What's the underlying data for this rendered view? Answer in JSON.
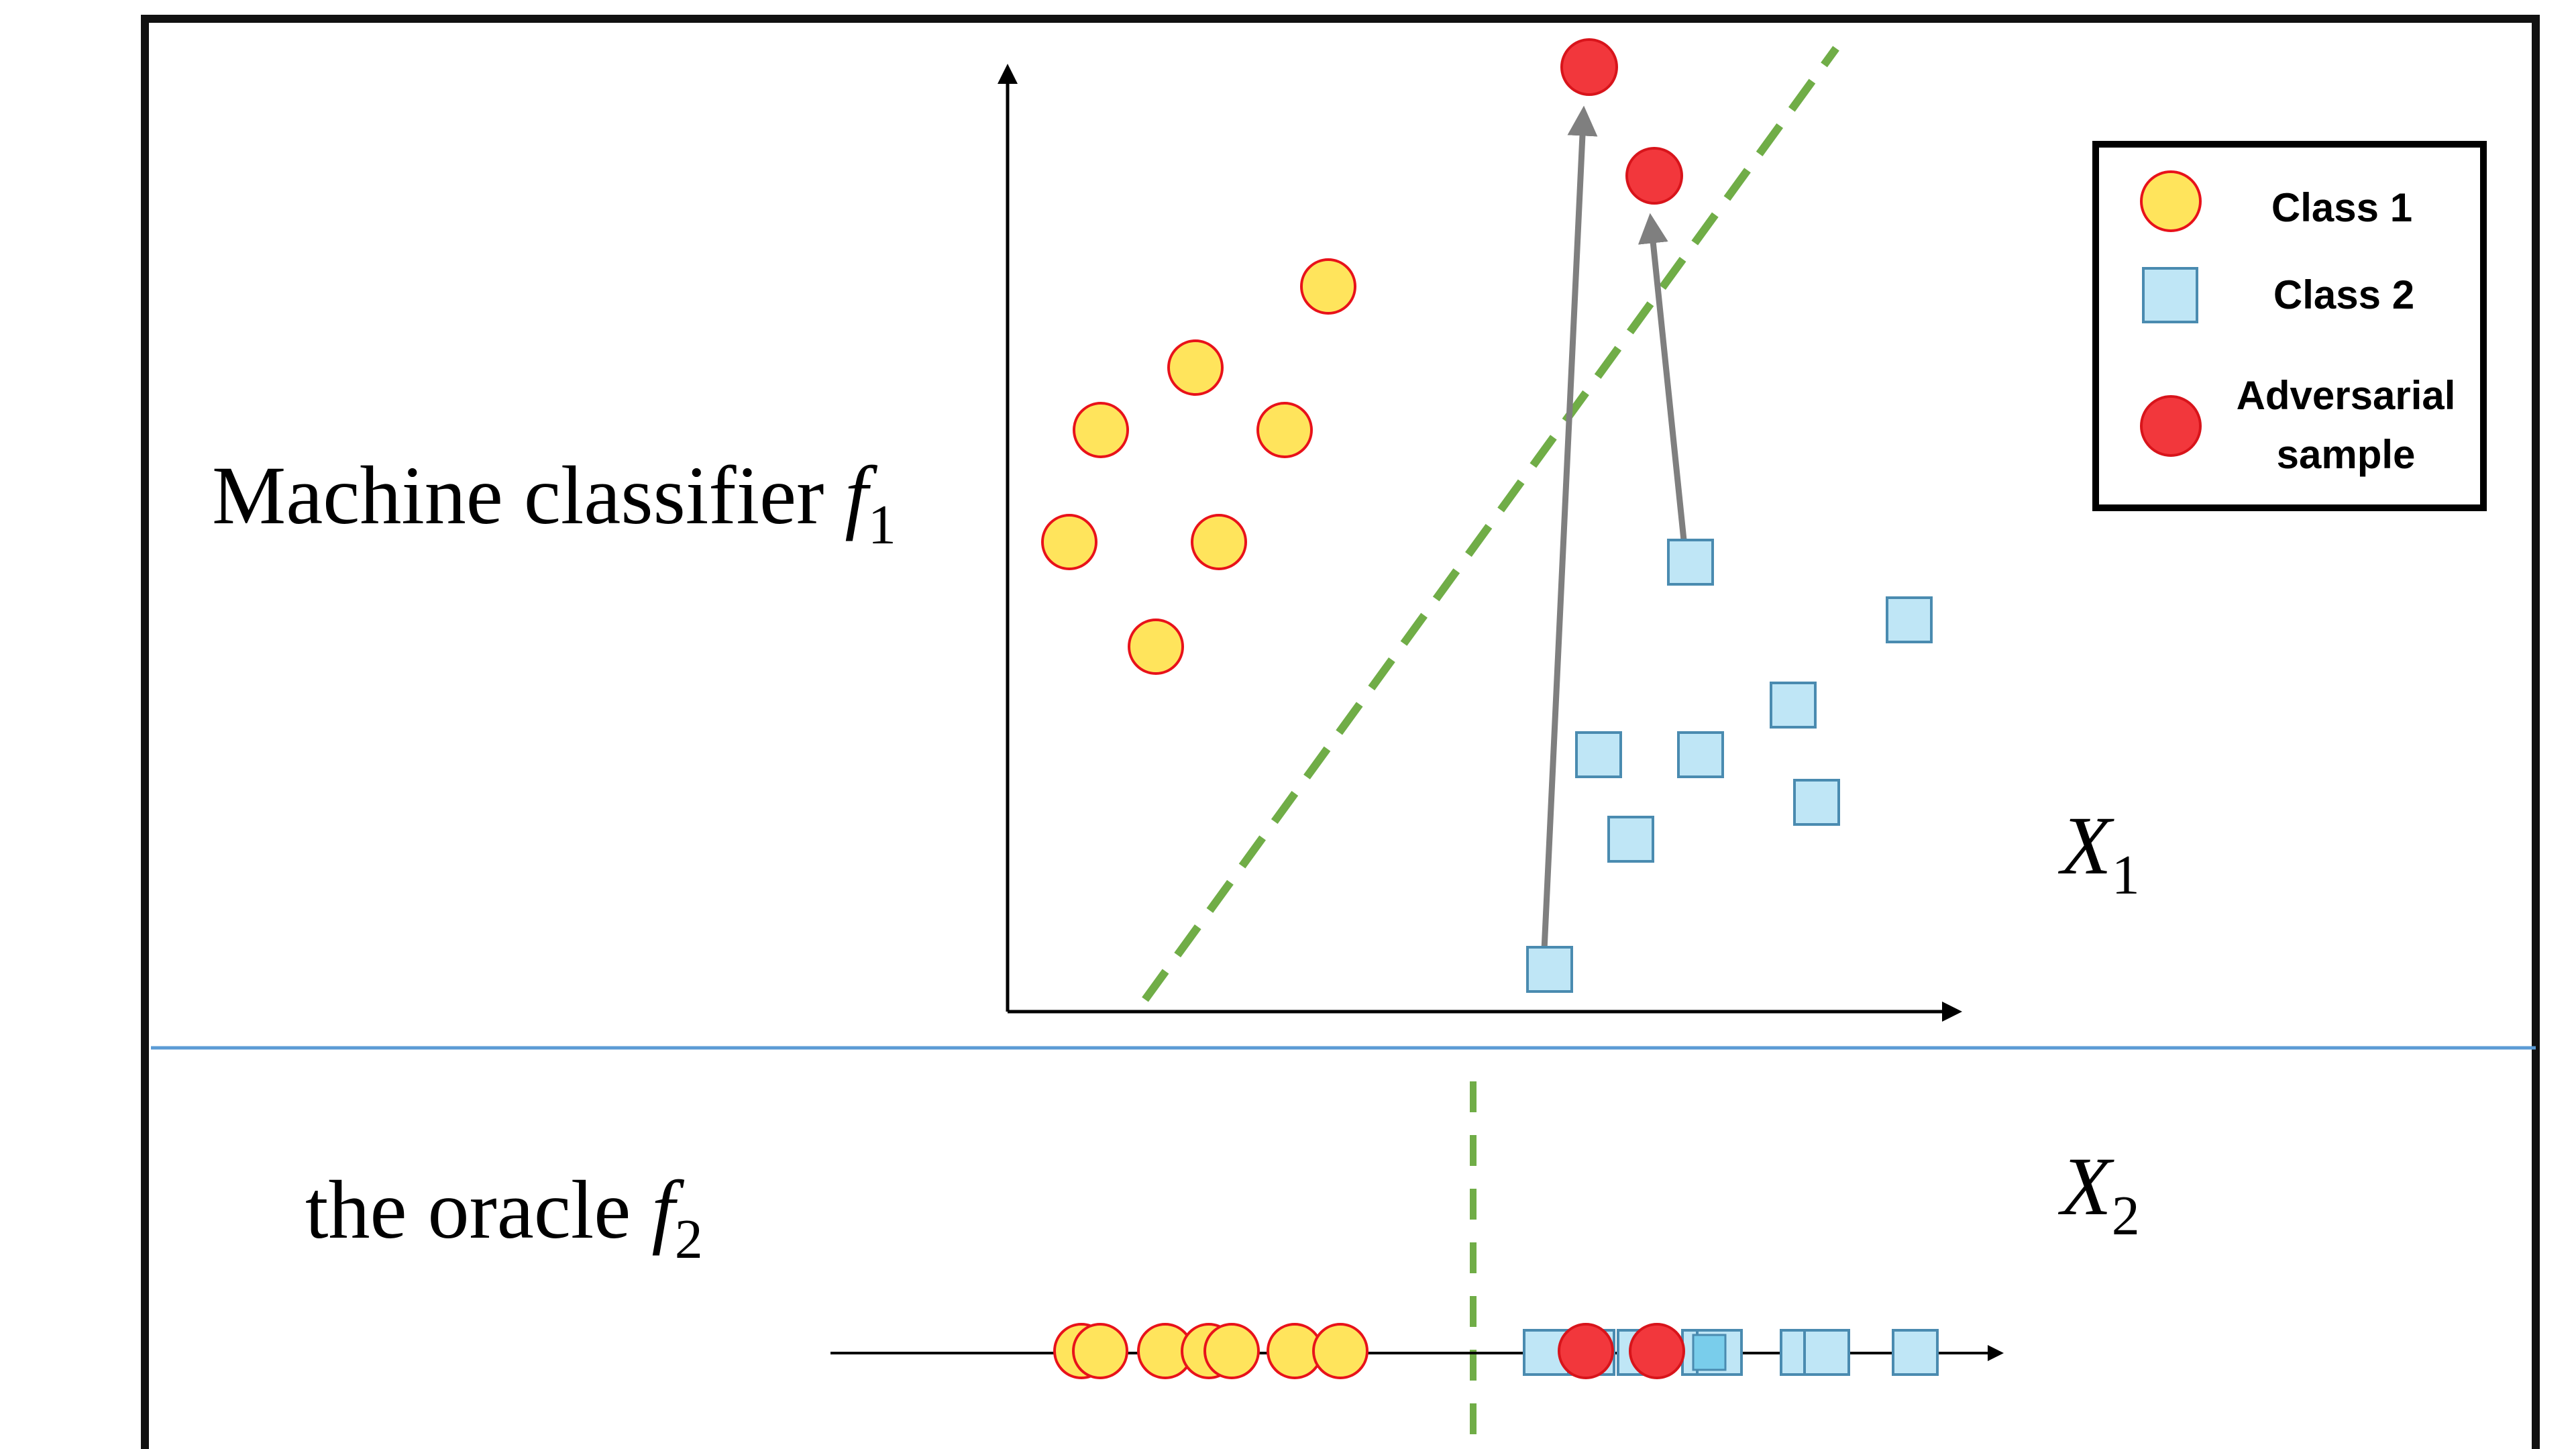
{
  "top_panel": {
    "label": "Machine classifier",
    "func_letter": "f",
    "func_sub": "1",
    "axis_label": "X",
    "axis_sub": "1"
  },
  "bottom_panel": {
    "label": "the oracle",
    "func_letter": "f",
    "func_sub": "2",
    "axis_label": "X",
    "axis_sub": "2"
  },
  "legend": {
    "class1": "Class 1",
    "class2": "Class 2",
    "adv_line1": "Adversarial",
    "adv_line2": "sample"
  },
  "colors": {
    "class1_fill": "#FFE45C",
    "class1_stroke": "#E8121A",
    "class2_fill": "#BFE6F6",
    "class2_stroke": "#4A8BB0",
    "class2_strip_fill": "#79CDEB",
    "adversarial_fill": "#F2373C",
    "adversarial_stroke": "#D8141B",
    "boundary": "#70AD47",
    "arrow": "#7F7F7F",
    "divider": "#5B9BD5",
    "frame": "#111111"
  }
}
